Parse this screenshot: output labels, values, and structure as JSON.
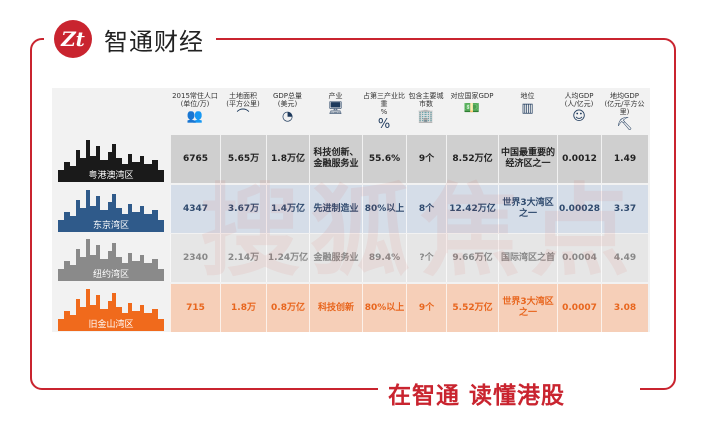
{
  "brand": {
    "logo_text": "Zt",
    "name": "智通财经",
    "slogan": "在智通 读懂港股",
    "color": "#c9242f"
  },
  "watermark": "搜狐焦点 WWW.FOCUS.CN",
  "headers": [
    {
      "label": "2015常住人口",
      "unit": "(单位/万)",
      "icon": "people-icon"
    },
    {
      "label": "土地面积",
      "unit": "(平方公里)",
      "icon": "land-icon"
    },
    {
      "label": "GDP总量",
      "unit": "(美元)",
      "icon": "pie-chart-icon"
    },
    {
      "label": "产业",
      "unit": "",
      "icon": "computer-icon"
    },
    {
      "label": "占第三产业比重",
      "unit": "%",
      "icon": "percent-icon"
    },
    {
      "label": "包含主要城市数",
      "unit": "",
      "icon": "buildings-icon"
    },
    {
      "label": "对应国家GDP",
      "unit": "",
      "icon": "money-icon"
    },
    {
      "label": "地位",
      "unit": "",
      "icon": "podium-icon"
    },
    {
      "label": "人均GDP",
      "unit": "(人/亿元)",
      "icon": "person-hand-icon"
    },
    {
      "label": "地均GDP",
      "unit": "(亿元/平方公里)",
      "icon": "land-hand-icon"
    }
  ],
  "rows": [
    {
      "name": "粤港澳湾区",
      "bg": "#cfcfcf",
      "sky": "#1a1a1a",
      "text": "#222222",
      "cells": [
        "6765",
        "5.65万",
        "1.8万亿",
        "科技创新、金融服务业",
        "55.6%",
        "9个",
        "8.52万亿",
        "中国最重要的经济区之一",
        "0.0012",
        "1.49"
      ]
    },
    {
      "name": "东京湾区",
      "bg": "#d5dde8",
      "sky": "#2f5a8a",
      "text": "#2f4a6e",
      "cells": [
        "4347",
        "3.67万",
        "1.4万亿",
        "先进制造业",
        "80%以上",
        "8个",
        "12.42万亿",
        "世界3大湾区之一",
        "0.00028",
        "3.37"
      ]
    },
    {
      "name": "纽约湾区",
      "bg": "#e6e6e6",
      "sky": "#8a8a8a",
      "text": "#888888",
      "cells": [
        "2340",
        "2.14万",
        "1.24万亿",
        "金融服务业",
        "89.4%",
        "?个",
        "9.66万亿",
        "国际湾区之首",
        "0.0004",
        "4.49"
      ]
    },
    {
      "name": "旧金山湾区",
      "bg": "#f6cfb8",
      "sky": "#f06a1c",
      "text": "#e8661e",
      "cells": [
        "715",
        "1.8万",
        "0.8万亿",
        "科技创新",
        "80%以上",
        "9个",
        "5.52万亿",
        "世界3大湾区之一",
        "0.0007",
        "3.08"
      ]
    }
  ]
}
